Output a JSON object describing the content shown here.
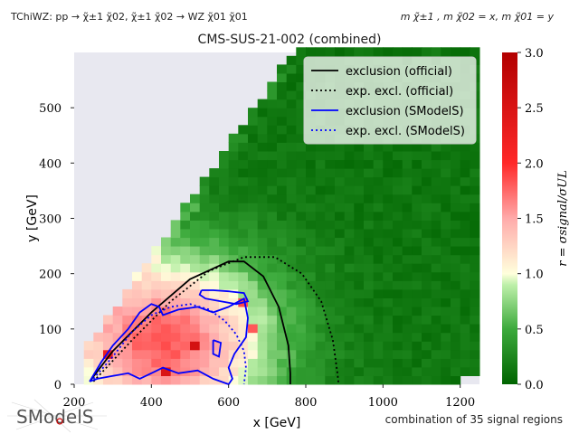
{
  "header": {
    "left": "TChiWZ: pp → χ̃±1 χ̃02, χ̃±1 χ̃02 → WZ χ̃01 χ̃01",
    "right": "m χ̃±1 , m χ̃02 = x, m χ̃01 = y",
    "title": "CMS-SUS-21-002 (combined)"
  },
  "footer": {
    "text": "combination of 35 signal regions"
  },
  "logo": {
    "text": "SModelS"
  },
  "colors": {
    "background": "#e8e8f0",
    "official": "#000000",
    "smodels": "#0000ff",
    "cmap_low": "#006400",
    "cmap_mid": "#ffffe0",
    "cmap_high": "#b20000"
  },
  "chart_data": {
    "type": "heatmap",
    "title": "CMS-SUS-21-002 (combined)",
    "xlabel": "x [GeV]",
    "ylabel": "y [GeV]",
    "xlim": [
      200,
      1250
    ],
    "ylim": [
      0,
      600
    ],
    "xticks": [
      200,
      400,
      600,
      800,
      1000,
      1200
    ],
    "yticks": [
      0,
      100,
      200,
      300,
      400,
      500
    ],
    "colorbar": {
      "label": "r = σsignal/σUL",
      "range": [
        0.0,
        3.0
      ],
      "ticks": [
        "0.0",
        "0.5",
        "1.0",
        "1.5",
        "2.0",
        "2.5",
        "3.0"
      ]
    },
    "legend_position": "top-right",
    "grid": false,
    "series": [
      {
        "name": "exclusion (official)",
        "style": "solid",
        "color": "#000000",
        "x": [
          240,
          300,
          400,
          500,
          600,
          640,
          690,
          730,
          755,
          760,
          760
        ],
        "y": [
          5,
          60,
          130,
          190,
          222,
          222,
          195,
          140,
          70,
          20,
          0
        ]
      },
      {
        "name": "exp. excl. (official)",
        "style": "dotted",
        "color": "#000000",
        "x": [
          250,
          350,
          450,
          550,
          640,
          720,
          790,
          840,
          870,
          882,
          885
        ],
        "y": [
          5,
          80,
          150,
          205,
          230,
          230,
          200,
          150,
          80,
          20,
          0
        ]
      },
      {
        "name": "exclusion (SModelS)",
        "style": "solid",
        "color": "#0000ff",
        "x": [
          240,
          270,
          300,
          340,
          370,
          400,
          420,
          430,
          470,
          520,
          560,
          600,
          640,
          650,
          645,
          615,
          600,
          610,
          600,
          560,
          520,
          470,
          430,
          400,
          370,
          340,
          300,
          260,
          240
        ],
        "y": [
          5,
          40,
          70,
          100,
          130,
          145,
          140,
          125,
          135,
          140,
          130,
          140,
          155,
          120,
          85,
          55,
          30,
          10,
          0,
          10,
          25,
          20,
          30,
          20,
          10,
          20,
          15,
          10,
          5
        ]
      },
      {
        "name": "exp. excl. (SModelS)",
        "style": "dotted",
        "color": "#0000ff",
        "x": [
          250,
          300,
          350,
          400,
          450,
          500,
          550,
          590,
          620,
          640,
          645,
          640
        ],
        "y": [
          10,
          50,
          95,
          125,
          140,
          145,
          135,
          115,
          90,
          60,
          30,
          0
        ]
      }
    ],
    "extra_contours": [
      {
        "color": "#0000ff",
        "style": "solid",
        "x": [
          530,
          560,
          600,
          640,
          650,
          620,
          580,
          540,
          525,
          530
        ],
        "y": [
          170,
          170,
          168,
          165,
          150,
          145,
          150,
          155,
          162,
          170
        ]
      },
      {
        "color": "#0000ff",
        "style": "solid",
        "x": [
          560,
          580,
          575,
          560,
          560
        ],
        "y": [
          80,
          75,
          50,
          55,
          80
        ]
      }
    ]
  }
}
